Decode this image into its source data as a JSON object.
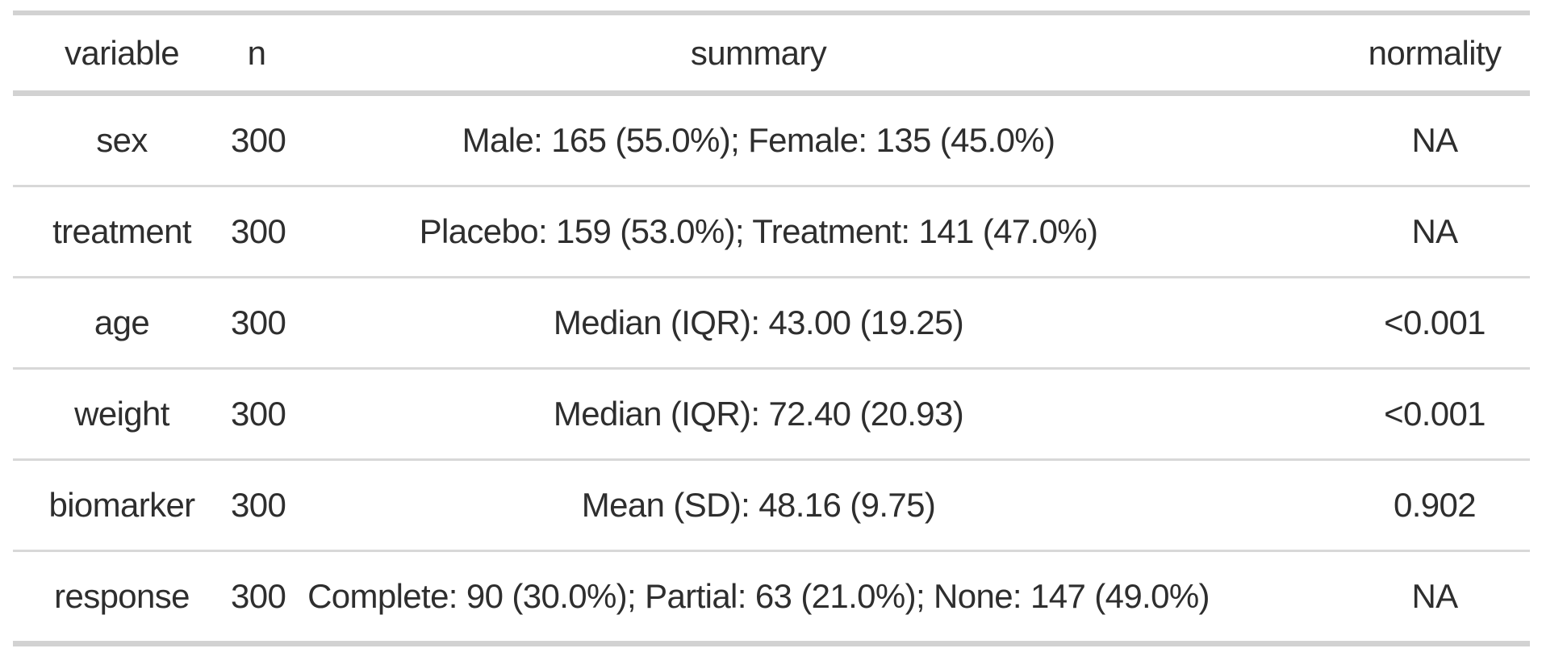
{
  "chart_data": {
    "type": "table",
    "columns": [
      "variable",
      "n",
      "summary",
      "normality"
    ],
    "rows": [
      [
        "sex",
        "300",
        "Male: 165 (55.0%); Female: 135 (45.0%)",
        "NA"
      ],
      [
        "treatment",
        "300",
        "Placebo: 159 (53.0%); Treatment: 141 (47.0%)",
        "NA"
      ],
      [
        "age",
        "300",
        "Median (IQR): 43.00 (19.25)",
        "<0.001"
      ],
      [
        "weight",
        "300",
        "Median (IQR): 72.40 (20.93)",
        "<0.001"
      ],
      [
        "biomarker",
        "300",
        "Mean (SD): 48.16 (9.75)",
        "0.902"
      ],
      [
        "response",
        "300",
        "Complete: 90 (30.0%); Partial: 63 (21.0%); None: 147 (49.0%)",
        "NA"
      ]
    ],
    "layout": {
      "grid": "horizontal-rules-only",
      "alignment": "center",
      "legend": "none"
    },
    "colors": {
      "text": "#2e2e2e",
      "rule_thick": "#d2d2d2",
      "rule_thin": "#d8d8d8",
      "background": "#ffffff"
    }
  }
}
